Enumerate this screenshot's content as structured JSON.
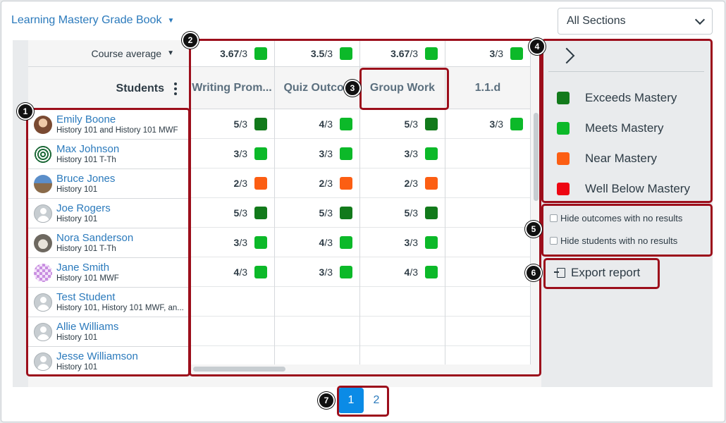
{
  "header": {
    "title": "Learning Mastery Grade Book"
  },
  "section_filter": {
    "selected": "All Sections"
  },
  "grid": {
    "course_average_label": "Course average",
    "students_label": "Students",
    "columns": [
      {
        "title": "Writing Prom...",
        "avg": "3.67",
        "avg_den": "/3",
        "avg_color": "#0cb929"
      },
      {
        "title": "Quiz Outcon",
        "avg": "3.5",
        "avg_den": "/3",
        "avg_color": "#0cb929"
      },
      {
        "title": "Group Work",
        "avg": "3.67",
        "avg_den": "/3",
        "avg_color": "#0cb929"
      },
      {
        "title": "1.1.d",
        "avg": "3",
        "avg_den": "/3",
        "avg_color": "#0cb929"
      }
    ],
    "students": [
      {
        "name": "Emily Boone",
        "section": "History 101 and History 101 MWF",
        "avatar": "photo-a"
      },
      {
        "name": "Max Johnson",
        "section": "History 101 T-Th",
        "avatar": "photo-b"
      },
      {
        "name": "Bruce Jones",
        "section": "History 101",
        "avatar": "photo-c"
      },
      {
        "name": "Joe Rogers",
        "section": "History 101",
        "avatar": "placeholder"
      },
      {
        "name": "Nora Sanderson",
        "section": "History 101 T-Th",
        "avatar": "photo-d"
      },
      {
        "name": "Jane Smith",
        "section": "History 101 MWF",
        "avatar": "photo-e"
      },
      {
        "name": "Test Student",
        "section": "History 101, History 101 MWF, an...",
        "avatar": "placeholder"
      },
      {
        "name": "Allie Williams",
        "section": "History 101",
        "avatar": "placeholder"
      },
      {
        "name": "Jesse Williamson",
        "section": "History 101",
        "avatar": "placeholder"
      }
    ],
    "scores": [
      [
        {
          "v": "5",
          "d": "/3",
          "c": "#127a1b"
        },
        {
          "v": "4",
          "d": "/3",
          "c": "#0cb929"
        },
        {
          "v": "5",
          "d": "/3",
          "c": "#127a1b"
        },
        {
          "v": "3",
          "d": "/3",
          "c": "#0cb929"
        }
      ],
      [
        {
          "v": "3",
          "d": "/3",
          "c": "#0cb929"
        },
        {
          "v": "3",
          "d": "/3",
          "c": "#0cb929"
        },
        {
          "v": "3",
          "d": "/3",
          "c": "#0cb929"
        },
        null
      ],
      [
        {
          "v": "2",
          "d": "/3",
          "c": "#fc5e13"
        },
        {
          "v": "2",
          "d": "/3",
          "c": "#fc5e13"
        },
        {
          "v": "2",
          "d": "/3",
          "c": "#fc5e13"
        },
        null
      ],
      [
        {
          "v": "5",
          "d": "/3",
          "c": "#127a1b"
        },
        {
          "v": "5",
          "d": "/3",
          "c": "#127a1b"
        },
        {
          "v": "5",
          "d": "/3",
          "c": "#127a1b"
        },
        null
      ],
      [
        {
          "v": "3",
          "d": "/3",
          "c": "#0cb929"
        },
        {
          "v": "4",
          "d": "/3",
          "c": "#0cb929"
        },
        {
          "v": "3",
          "d": "/3",
          "c": "#0cb929"
        },
        null
      ],
      [
        {
          "v": "4",
          "d": "/3",
          "c": "#0cb929"
        },
        {
          "v": "3",
          "d": "/3",
          "c": "#0cb929"
        },
        {
          "v": "4",
          "d": "/3",
          "c": "#0cb929"
        },
        null
      ],
      [
        null,
        null,
        null,
        null
      ],
      [
        null,
        null,
        null,
        null
      ],
      [
        null,
        null,
        null,
        null
      ]
    ]
  },
  "legend": [
    {
      "label": "Exceeds Mastery",
      "color": "#127a1b"
    },
    {
      "label": "Meets Mastery",
      "color": "#0cb929"
    },
    {
      "label": "Near Mastery",
      "color": "#fc5e13"
    },
    {
      "label": "Well Below Mastery",
      "color": "#ee0612"
    }
  ],
  "options": {
    "hide_outcomes": "Hide outcomes with no results",
    "hide_students": "Hide students with no results"
  },
  "export": {
    "label": "Export report"
  },
  "pagination": {
    "pages": [
      "1",
      "2"
    ],
    "current": "1"
  },
  "callouts": [
    "1",
    "2",
    "3",
    "4",
    "5",
    "6",
    "7"
  ]
}
